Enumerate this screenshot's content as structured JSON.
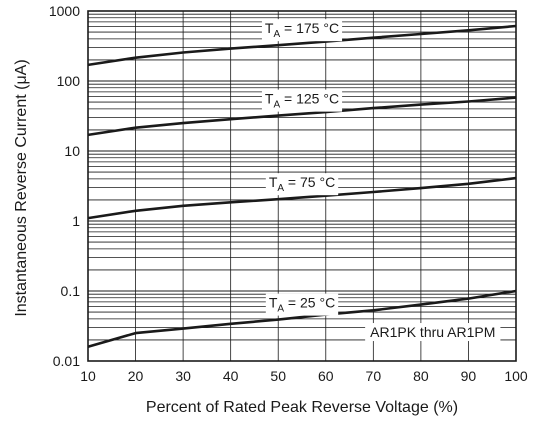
{
  "chart_data": {
    "type": "line",
    "xlabel": "Percent of Rated Peak Reverse Voltage (%)",
    "ylabel": "Instantaneous Reverse Current (μA)",
    "xlim": [
      10,
      100
    ],
    "ylim": [
      0.01,
      1000
    ],
    "yscale": "log",
    "grid": true,
    "x_ticks": [
      "10",
      "20",
      "30",
      "40",
      "50",
      "60",
      "70",
      "80",
      "90",
      "100"
    ],
    "y_ticks": [
      "0.01",
      "0.1",
      "1",
      "10",
      "100",
      "1000"
    ],
    "series": [
      {
        "temp_prefix": "T",
        "temp_sub": "A",
        "temp_value": " = 175 °C",
        "x": [
          10,
          20,
          30,
          40,
          50,
          60,
          70,
          80,
          90,
          100
        ],
        "values": [
          170,
          215,
          255,
          290,
          325,
          365,
          415,
          470,
          530,
          610
        ]
      },
      {
        "temp_prefix": "T",
        "temp_sub": "A",
        "temp_value": " = 125 °C",
        "x": [
          10,
          20,
          30,
          40,
          50,
          60,
          70,
          80,
          90,
          100
        ],
        "values": [
          17,
          21.5,
          25,
          28.5,
          32,
          36,
          41,
          46,
          51,
          58
        ]
      },
      {
        "temp_prefix": "T",
        "temp_sub": "A",
        "temp_value": " = 75 °C",
        "x": [
          10,
          20,
          30,
          40,
          50,
          60,
          70,
          80,
          90,
          100
        ],
        "values": [
          1.1,
          1.4,
          1.65,
          1.85,
          2.05,
          2.3,
          2.6,
          2.95,
          3.4,
          4.1
        ]
      },
      {
        "temp_prefix": "T",
        "temp_sub": "A",
        "temp_value": " = 25 °C",
        "x": [
          10,
          20,
          30,
          40,
          50,
          60,
          70,
          80,
          90,
          100
        ],
        "values": [
          0.016,
          0.025,
          0.029,
          0.034,
          0.039,
          0.046,
          0.053,
          0.064,
          0.078,
          0.1
        ]
      }
    ],
    "annotation": "AR1PK thru AR1PM"
  }
}
